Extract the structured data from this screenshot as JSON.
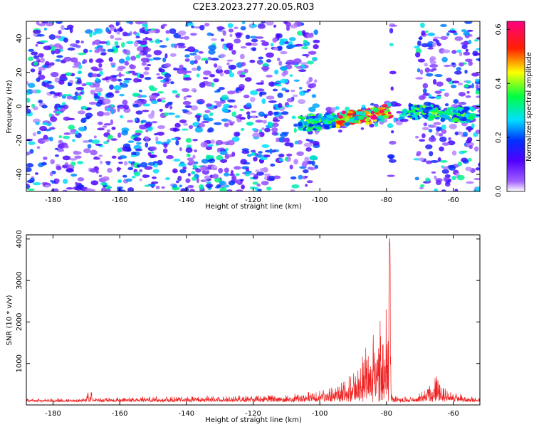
{
  "title": "C2E3.2023.277.20.05.R03",
  "chart_data": [
    {
      "type": "heatmap",
      "xlabel": "Height of straight line (km)",
      "ylabel": "Frequency (Hz)",
      "xlim": [
        -188,
        -52
      ],
      "ylim": [
        -50,
        50
      ],
      "x_ticks": [
        -180,
        -160,
        -140,
        -120,
        -100,
        -80,
        -60
      ],
      "y_ticks": [
        -40,
        -20,
        0,
        20,
        40
      ],
      "colorbar": {
        "label": "Normalized spectral amplitude",
        "range": [
          0,
          0.63
        ],
        "ticks": [
          "0.0",
          "0.2",
          "0.4",
          "0.6"
        ],
        "colors": [
          "#ffffff",
          "#7a00ff",
          "#0000ff",
          "#00ffff",
          "#00ff00",
          "#ffff00",
          "#ff0000",
          "#ff00aa"
        ]
      },
      "gaps_x": [
        [
          -101,
          -79
        ],
        [
          -78,
          -71
        ]
      ],
      "signal_track": [
        {
          "x": -104,
          "f": -10
        },
        {
          "x": -98,
          "f": -9
        },
        {
          "x": -92,
          "f": -7
        },
        {
          "x": -86,
          "f": -6
        },
        {
          "x": -80,
          "f": -3
        },
        {
          "x": -75,
          "f": -4
        },
        {
          "x": -70,
          "f": -3
        },
        {
          "x": -64,
          "f": -4
        },
        {
          "x": -58,
          "f": -5
        }
      ],
      "peak_amplitude": 0.62
    },
    {
      "type": "line",
      "xlabel": "Height of straight line (km)",
      "ylabel": "SNR (10 * v/v)",
      "xlim": [
        -188,
        -52
      ],
      "ylim": [
        0,
        4100
      ],
      "x_ticks": [
        -180,
        -160,
        -140,
        -120,
        -100,
        -80,
        -60
      ],
      "y_ticks": [
        1000,
        2000,
        3000,
        4000
      ],
      "color": "#ee2222",
      "baseline": 130,
      "envelope": [
        {
          "x": -188,
          "y": 150
        },
        {
          "x": -170,
          "y": 170
        },
        {
          "x": -169,
          "y": 500
        },
        {
          "x": -168,
          "y": 180
        },
        {
          "x": -150,
          "y": 200
        },
        {
          "x": -130,
          "y": 220
        },
        {
          "x": -110,
          "y": 250
        },
        {
          "x": -100,
          "y": 350
        },
        {
          "x": -95,
          "y": 500
        },
        {
          "x": -90,
          "y": 850
        },
        {
          "x": -87,
          "y": 1350
        },
        {
          "x": -85,
          "y": 1500
        },
        {
          "x": -84,
          "y": 1700
        },
        {
          "x": -83,
          "y": 1950
        },
        {
          "x": -82,
          "y": 2350
        },
        {
          "x": -80.5,
          "y": 2450
        },
        {
          "x": -79.5,
          "y": 3300
        },
        {
          "x": -79,
          "y": 4100
        },
        {
          "x": -78.5,
          "y": 250
        },
        {
          "x": -72,
          "y": 180
        },
        {
          "x": -68,
          "y": 400
        },
        {
          "x": -65,
          "y": 700
        },
        {
          "x": -62,
          "y": 350
        },
        {
          "x": -52,
          "y": 180
        }
      ]
    }
  ]
}
